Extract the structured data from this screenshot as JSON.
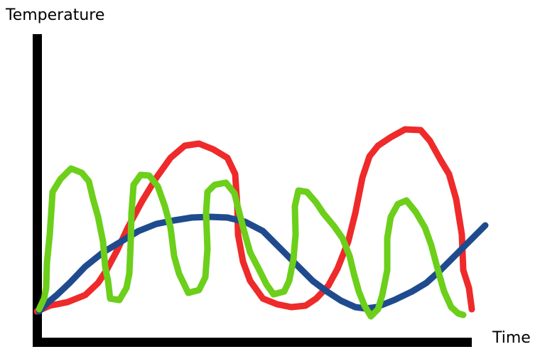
{
  "axes": {
    "y_label": "Temperature",
    "x_label": "Time"
  }
}
